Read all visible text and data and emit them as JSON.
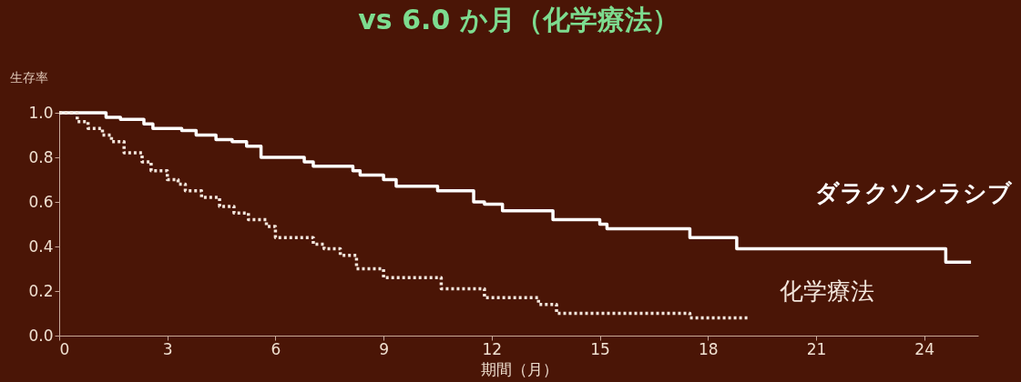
{
  "chart_data": {
    "type": "step",
    "title": "vs 6.0 か月（化学療法）",
    "xlabel": "期間（月）",
    "ylabel": "生存率",
    "xlim": [
      0,
      25.5
    ],
    "xticks": [
      0,
      3,
      6,
      9,
      12,
      15,
      18,
      21,
      24
    ],
    "ylim": [
      0,
      1.0
    ],
    "yticks": [
      {
        "value": 0,
        "label": "0.0"
      },
      {
        "value": 0.2,
        "label": "0.2"
      },
      {
        "value": 0.4,
        "label": "0.4"
      },
      {
        "value": 0.6,
        "label": "0.6"
      },
      {
        "value": 0.8,
        "label": "0.8"
      },
      {
        "value": 1,
        "label": "1.0"
      }
    ],
    "grid": false,
    "marker": "none",
    "series": [
      {
        "name": "ダラクソンラシブ",
        "color": "#ffffff",
        "line_style": "solid",
        "x": [
          0,
          1.3,
          1.7,
          2.35,
          2.6,
          3.4,
          3.8,
          4.35,
          4.8,
          5.2,
          5.6,
          6.8,
          7.05,
          8.15,
          8.35,
          9.0,
          9.35,
          10.5,
          11.5,
          11.8,
          12.3,
          13.7,
          15.0,
          15.2,
          17.5,
          18.8,
          24.6,
          25.3
        ],
        "values": [
          1.0,
          0.98,
          0.97,
          0.95,
          0.93,
          0.92,
          0.9,
          0.88,
          0.87,
          0.85,
          0.8,
          0.78,
          0.76,
          0.74,
          0.72,
          0.7,
          0.67,
          0.65,
          0.6,
          0.59,
          0.56,
          0.52,
          0.5,
          0.48,
          0.44,
          0.39,
          0.33,
          0.33
        ]
      },
      {
        "name": "化学療法",
        "color": "#f3e6dc",
        "line_style": "dotted",
        "x": [
          0,
          0.5,
          0.8,
          1.2,
          1.45,
          1.8,
          2.3,
          2.55,
          3.0,
          3.3,
          3.5,
          3.95,
          4.45,
          4.85,
          5.25,
          5.75,
          6.0,
          7.05,
          7.35,
          7.8,
          8.25,
          9.0,
          10.6,
          11.8,
          13.3,
          13.8,
          17.5,
          19.1
        ],
        "values": [
          1.0,
          0.96,
          0.93,
          0.9,
          0.87,
          0.82,
          0.78,
          0.74,
          0.7,
          0.68,
          0.65,
          0.62,
          0.58,
          0.55,
          0.52,
          0.49,
          0.44,
          0.41,
          0.39,
          0.36,
          0.3,
          0.26,
          0.21,
          0.17,
          0.14,
          0.1,
          0.08,
          0.08
        ]
      }
    ]
  }
}
